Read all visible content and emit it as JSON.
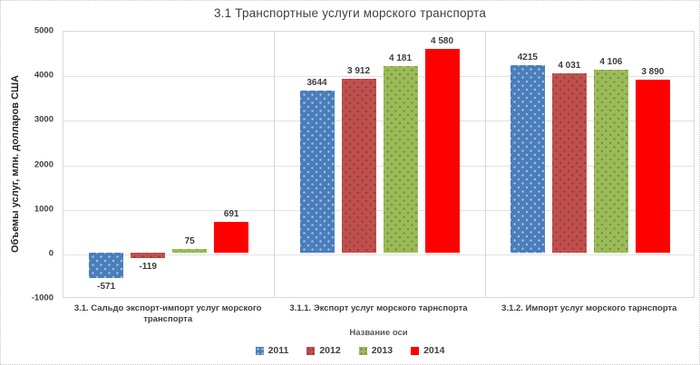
{
  "title": "3.1 Транспортные услуги морского транспорта",
  "axes": {
    "y_label": "Объемы услуг, млн. долларов США",
    "x_label": "Название оси",
    "y_ticks": [
      "5000",
      "4000",
      "3000",
      "2000",
      "1000",
      "0",
      "-1000"
    ]
  },
  "chart_data": {
    "type": "bar",
    "title": "3.1 Транспортные услуги морского транспорта",
    "xlabel": "Название оси",
    "ylabel": "Объемы услуг, млн. долларов США",
    "ylim": [
      -1000,
      5000
    ],
    "ytick_step": 1000,
    "grid": true,
    "legend_position": "bottom",
    "categories": [
      "3.1.  Сальдо экспорт-импорт услуг морского транспорта",
      "3.1.1.  Экспорт услуг морского тарнспорта",
      "3.1.2.  Импорт услуг морского тарнспорта"
    ],
    "series": [
      {
        "name": "2011",
        "color": "#4a7ebb",
        "dot_color": "#a9c3e2",
        "values": [
          -571,
          3644,
          4215
        ],
        "value_labels": [
          "-571",
          "3644",
          "4215"
        ]
      },
      {
        "name": "2012",
        "color": "#c0504d",
        "dot_color": "#933b3a",
        "values": [
          -119,
          3912,
          4031
        ],
        "value_labels": [
          "-119",
          "3 912",
          "4 031"
        ]
      },
      {
        "name": "2013",
        "color": "#9bbb59",
        "dot_color": "#71903a",
        "values": [
          75,
          4181,
          4106
        ],
        "value_labels": [
          "75",
          "4 181",
          "4 106"
        ]
      },
      {
        "name": "2014",
        "color": "#ff0000",
        "dot_color": null,
        "values": [
          691,
          4580,
          3890
        ],
        "value_labels": [
          "691",
          "4 580",
          "3 890"
        ]
      }
    ]
  }
}
